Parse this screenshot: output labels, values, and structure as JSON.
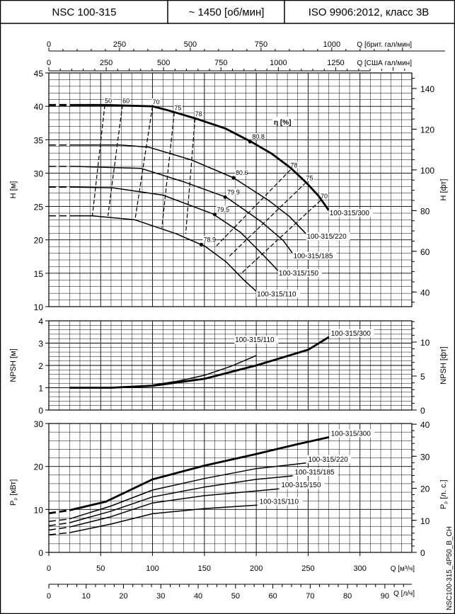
{
  "header": {
    "model": "NSC 100-315",
    "speed": "~ 1450 [об/мин]",
    "standard": "ISO 9906:2012, класс 3B"
  },
  "footer_code": "NSC100-315_4P50_B_CH",
  "chart_data": [
    {
      "type": "line",
      "id": "head",
      "ylabel": "H [м]",
      "ylabel_right": "H [фт]",
      "xlim": [
        0,
        350
      ],
      "ylim": [
        10,
        45
      ],
      "yticks": [
        10,
        15,
        20,
        25,
        30,
        35,
        40,
        45
      ],
      "yticks_right": [
        40,
        60,
        80,
        100,
        120,
        140
      ],
      "grid": true,
      "top_axes": [
        {
          "label": "Q [брит. гал/мин]",
          "ticks": [
            0,
            250,
            500,
            750,
            1000
          ]
        },
        {
          "label": "Q [США гал/мин]",
          "ticks": [
            0,
            250,
            500,
            750,
            1000,
            1250
          ]
        }
      ],
      "efficiency_label": "η [%]",
      "series": [
        {
          "name": "100-315/300",
          "bold": true,
          "x": [
            0,
            25,
            55,
            100,
            115,
            141,
            170,
            195,
            215,
            233,
            248,
            260,
            270
          ],
          "y": [
            40.2,
            40.2,
            40.2,
            40.0,
            39.4,
            38.2,
            36.7,
            34.7,
            32.9,
            30.8,
            28.6,
            26.6,
            24.4
          ]
        },
        {
          "name": "100-315/220",
          "x": [
            0,
            25,
            69,
            96,
            137,
            178,
            212,
            232,
            248
          ],
          "y": [
            34.2,
            34.2,
            34.2,
            33.9,
            32.0,
            29.3,
            25.9,
            23.5,
            20.9
          ]
        },
        {
          "name": "100-315/185",
          "x": [
            0,
            25,
            89,
            130,
            171,
            205,
            226,
            235
          ],
          "y": [
            31.0,
            31.0,
            30.7,
            28.7,
            26.4,
            22.7,
            19.9,
            18.0
          ]
        },
        {
          "name": "100-315/150",
          "x": [
            0,
            25,
            62,
            110,
            158,
            185,
            205,
            221
          ],
          "y": [
            27.9,
            27.9,
            27.8,
            26.7,
            23.9,
            21.1,
            18.0,
            15.4
          ]
        },
        {
          "name": "100-315/110",
          "x": [
            0,
            25,
            42,
            83,
            123,
            151,
            171,
            188,
            200
          ],
          "y": [
            23.6,
            23.6,
            23.6,
            23.0,
            20.9,
            19.0,
            16.7,
            14.0,
            12.3
          ]
        }
      ],
      "efficiency_lines": [
        {
          "label": "50",
          "from": [
            54,
            40.2
          ],
          "to": [
            42,
            23.6
          ]
        },
        {
          "label": "60",
          "from": [
            71,
            40.2
          ],
          "to": [
            57,
            23.6
          ]
        },
        {
          "label": "70",
          "from": [
            100,
            40.0
          ],
          "to": [
            83,
            22.9
          ]
        },
        {
          "label": "75",
          "from": [
            121,
            39.1
          ],
          "to": [
            109,
            21.8
          ]
        },
        {
          "label": "78",
          "from": [
            141,
            38.2
          ],
          "to": [
            132,
            20.9
          ]
        },
        {
          "label": "78",
          "from": [
            233,
            30.5
          ],
          "to": [
            161,
            19.0
          ]
        },
        {
          "label": "75",
          "from": [
            248,
            28.6
          ],
          "to": [
            173,
            17.4
          ]
        },
        {
          "label": "70",
          "from": [
            262,
            25.9
          ],
          "to": [
            185,
            14.9
          ]
        }
      ],
      "best_efficiency_points": [
        {
          "label": "80.8",
          "x": 194,
          "y": 34.7
        },
        {
          "label": "80.6",
          "x": 178,
          "y": 29.3
        },
        {
          "label": "79.9",
          "x": 170,
          "y": 26.4
        },
        {
          "label": "79.5",
          "x": 160,
          "y": 23.8
        },
        {
          "label": "78.9",
          "x": 147,
          "y": 19.3
        }
      ],
      "dashed_below_x": 25
    },
    {
      "type": "line",
      "id": "npsh",
      "ylabel": "NPSH [м]",
      "ylabel_right": "NPSH [фт]",
      "xlim": [
        0,
        350
      ],
      "ylim": [
        0,
        4
      ],
      "yticks": [
        0,
        1,
        2,
        3,
        4
      ],
      "yticks_right": [
        0,
        5,
        10
      ],
      "grid": true,
      "series": [
        {
          "name": "100-315/300",
          "bold": true,
          "x": [
            20,
            60,
            100,
            150,
            200,
            250,
            270
          ],
          "y": [
            1.0,
            1.0,
            1.09,
            1.4,
            2.0,
            2.7,
            3.27
          ]
        },
        {
          "name": "100-315/110",
          "x": [
            100,
            125,
            150,
            175,
            200
          ],
          "y": [
            1.12,
            1.3,
            1.56,
            1.95,
            2.44
          ]
        }
      ]
    },
    {
      "type": "line",
      "id": "power",
      "ylabel": "P",
      "ylabel_sub": "P",
      "ylabel_unit": "[кВт]",
      "ylabel_right_unit": "[л. с.]",
      "xlim": [
        0,
        350
      ],
      "ylim": [
        0,
        30
      ],
      "yticks": [
        0,
        10,
        20,
        30
      ],
      "yticks_right": [
        0,
        10,
        20,
        30,
        40
      ],
      "grid": true,
      "xlabel": "Q [м³/ч]",
      "xticks": [
        0,
        50,
        100,
        150,
        200,
        250,
        300
      ],
      "bottom_axis": {
        "label": "Q [л/ч]",
        "ticks": [
          0,
          10,
          20,
          30,
          40,
          50,
          60,
          70,
          80,
          90
        ]
      },
      "series": [
        {
          "name": "100-315/300",
          "bold": true,
          "x": [
            0,
            20,
            55,
            100,
            150,
            200,
            240,
            270
          ],
          "y": [
            9.1,
            9.8,
            11.8,
            17.0,
            20.2,
            22.9,
            25.2,
            26.8
          ]
        },
        {
          "name": "100-315/220",
          "x": [
            0,
            20,
            60,
            100,
            150,
            200,
            248
          ],
          "y": [
            7.2,
            7.8,
            10.8,
            14.5,
            17.2,
            19.5,
            20.8
          ]
        },
        {
          "name": "100-315/185",
          "x": [
            0,
            20,
            60,
            100,
            150,
            200,
            235
          ],
          "y": [
            6.2,
            6.9,
            9.6,
            12.9,
            15.2,
            17.0,
            17.8
          ]
        },
        {
          "name": "100-315/150",
          "x": [
            0,
            20,
            60,
            100,
            150,
            200,
            222
          ],
          "y": [
            5.2,
            5.9,
            8.3,
            11.5,
            13.2,
            14.3,
            14.8
          ]
        },
        {
          "name": "100-315/110",
          "x": [
            0,
            20,
            60,
            100,
            150,
            201
          ],
          "y": [
            4.1,
            4.6,
            6.6,
            9.0,
            10.2,
            11.0
          ]
        }
      ],
      "dashed_below_x": 20
    }
  ]
}
